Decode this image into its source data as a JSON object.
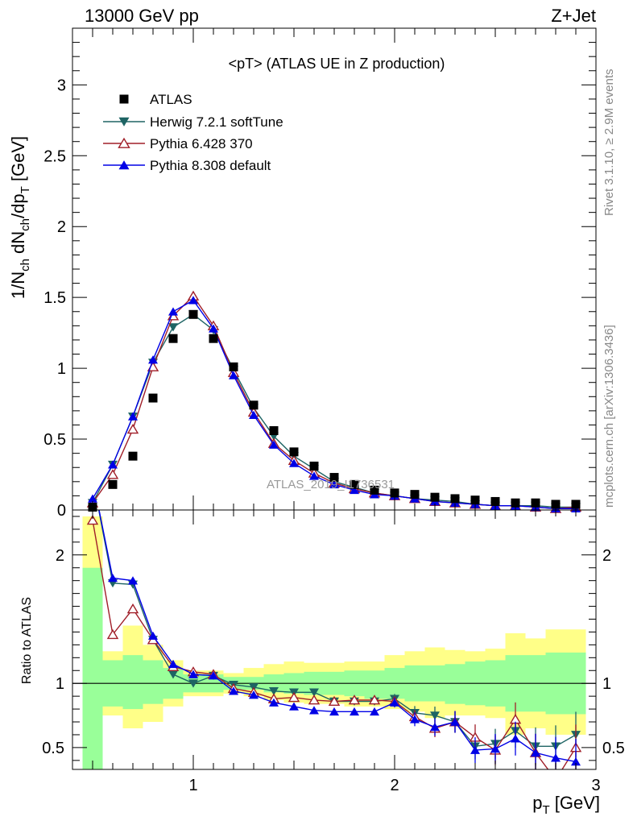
{
  "header": {
    "energy_label": "13000 GeV pp",
    "process_label": "Z+Jet"
  },
  "side_labels": {
    "rivet": "Rivet 3.1.10, ≥ 2.9M events",
    "mcplots": "mcplots.cern.ch [arXiv:1306.3436]"
  },
  "watermark": "ATLAS_2019_I1736531",
  "chart_data": [
    {
      "type": "scatter",
      "title": "<pT> (ATLAS UE in Z production)",
      "ylabel": "1/N_ch dN_ch/dp_T [GeV]",
      "xlim": [
        0.4,
        3.0
      ],
      "ylim": [
        0,
        3.4
      ],
      "yticks": [
        0,
        0.5,
        1,
        1.5,
        2,
        2.5,
        3
      ],
      "ytick_labels": [
        "0",
        "0.5",
        "1",
        "1.5",
        "2",
        "2.5",
        "3"
      ],
      "legend_position": "top-left",
      "x": [
        0.5,
        0.6,
        0.7,
        0.8,
        0.9,
        1.0,
        1.1,
        1.2,
        1.3,
        1.4,
        1.5,
        1.6,
        1.7,
        1.8,
        1.9,
        2.0,
        2.1,
        2.2,
        2.3,
        2.4,
        2.5,
        2.6,
        2.7,
        2.8,
        2.9
      ],
      "series": [
        {
          "name": "ATLAS",
          "color": "#000000",
          "marker": "square",
          "values": [
            0.02,
            0.18,
            0.38,
            0.79,
            1.21,
            1.38,
            1.21,
            1.01,
            0.74,
            0.56,
            0.41,
            0.31,
            0.23,
            0.18,
            0.14,
            0.12,
            0.11,
            0.09,
            0.08,
            0.07,
            0.06,
            0.05,
            0.05,
            0.04,
            0.04
          ]
        },
        {
          "name": "Herwig 7.2.1 softTune",
          "color": "#1e6464",
          "marker": "triangle-down",
          "values": [
            0.05,
            0.32,
            0.66,
            1.04,
            1.29,
            1.38,
            1.27,
            0.99,
            0.72,
            0.52,
            0.38,
            0.29,
            0.2,
            0.16,
            0.12,
            0.1,
            0.08,
            0.07,
            0.06,
            0.04,
            0.03,
            0.03,
            0.03,
            0.02,
            0.02
          ]
        },
        {
          "name": "Pythia 6.428 370",
          "color": "#a01e28",
          "marker": "triangle-up-open",
          "values": [
            0.05,
            0.25,
            0.57,
            1.01,
            1.37,
            1.51,
            1.3,
            0.97,
            0.69,
            0.47,
            0.35,
            0.26,
            0.19,
            0.15,
            0.12,
            0.1,
            0.08,
            0.06,
            0.05,
            0.04,
            0.03,
            0.03,
            0.02,
            0.01,
            0.02
          ]
        },
        {
          "name": "Pythia 8.308 default",
          "color": "#0000e6",
          "marker": "triangle-up",
          "values": [
            0.08,
            0.32,
            0.66,
            1.06,
            1.4,
            1.48,
            1.28,
            0.95,
            0.67,
            0.46,
            0.33,
            0.24,
            0.18,
            0.14,
            0.11,
            0.1,
            0.08,
            0.06,
            0.05,
            0.04,
            0.03,
            0.03,
            0.02,
            0.01,
            0.01
          ]
        }
      ]
    },
    {
      "type": "line",
      "ylabel": "Ratio to ATLAS",
      "xlabel": "p_T [GeV]",
      "xlim": [
        0.4,
        3.0
      ],
      "ylim": [
        0.33,
        2.35
      ],
      "xticks": [
        1,
        2,
        3
      ],
      "xtick_labels": [
        "1",
        "2",
        "3"
      ],
      "yticks": [
        0.5,
        1,
        2
      ],
      "ytick_labels": [
        "0.5",
        "1",
        "2"
      ],
      "x": [
        0.5,
        0.6,
        0.7,
        0.8,
        0.9,
        1.0,
        1.1,
        1.2,
        1.3,
        1.4,
        1.5,
        1.6,
        1.7,
        1.8,
        1.9,
        2.0,
        2.1,
        2.2,
        2.3,
        2.4,
        2.5,
        2.6,
        2.7,
        2.8,
        2.9
      ],
      "bands": {
        "green_upper": [
          1.9,
          1.18,
          1.22,
          1.18,
          1.12,
          1.07,
          1.07,
          1.05,
          1.05,
          1.07,
          1.08,
          1.09,
          1.09,
          1.1,
          1.1,
          1.12,
          1.14,
          1.14,
          1.15,
          1.17,
          1.18,
          1.22,
          1.22,
          1.24,
          1.24
        ],
        "green_lower": [
          0.2,
          0.82,
          0.8,
          0.84,
          0.88,
          0.93,
          0.93,
          0.95,
          0.95,
          0.93,
          0.92,
          0.91,
          0.91,
          0.9,
          0.88,
          0.88,
          0.86,
          0.86,
          0.84,
          0.83,
          0.82,
          0.78,
          0.78,
          0.76,
          0.76
        ],
        "yellow_upper": [
          2.3,
          1.25,
          1.45,
          1.3,
          1.18,
          1.1,
          1.1,
          1.08,
          1.12,
          1.15,
          1.17,
          1.16,
          1.16,
          1.17,
          1.17,
          1.22,
          1.25,
          1.28,
          1.26,
          1.25,
          1.27,
          1.39,
          1.35,
          1.42,
          1.42
        ],
        "yellow_lower": [
          0.2,
          0.75,
          0.65,
          0.7,
          0.82,
          0.9,
          0.9,
          0.92,
          0.9,
          0.87,
          0.85,
          0.84,
          0.84,
          0.82,
          0.82,
          0.8,
          0.78,
          0.73,
          0.75,
          0.75,
          0.73,
          0.6,
          0.65,
          0.6,
          0.6
        ]
      },
      "series": [
        {
          "name": "Herwig 7.2.1 softTune",
          "color": "#1e6464",
          "marker": "triangle-down",
          "values": [
            2.6,
            1.78,
            1.77,
            1.34,
            1.07,
            1.0,
            1.06,
            0.99,
            0.97,
            0.94,
            0.93,
            0.93,
            0.86,
            0.86,
            0.86,
            0.88,
            0.77,
            0.75,
            0.7,
            0.51,
            0.53,
            0.63,
            0.51,
            0.51,
            0.6
          ]
        },
        {
          "name": "Pythia 6.428 370",
          "color": "#a01e28",
          "marker": "triangle-up-open",
          "values": [
            2.27,
            1.38,
            1.58,
            1.34,
            1.13,
            1.09,
            1.07,
            0.96,
            0.93,
            0.88,
            0.89,
            0.87,
            0.86,
            0.87,
            0.87,
            0.86,
            0.74,
            0.65,
            0.7,
            0.58,
            0.48,
            0.72,
            0.46,
            0.25,
            0.5
          ]
        },
        {
          "name": "Pythia 8.308 default",
          "color": "#0000e6",
          "marker": "triangle-up",
          "values": [
            2.6,
            1.82,
            1.8,
            1.37,
            1.15,
            1.07,
            1.06,
            0.94,
            0.91,
            0.85,
            0.82,
            0.79,
            0.78,
            0.78,
            0.78,
            0.85,
            0.72,
            0.66,
            0.7,
            0.48,
            0.49,
            0.57,
            0.46,
            0.42,
            0.39
          ]
        }
      ]
    }
  ]
}
